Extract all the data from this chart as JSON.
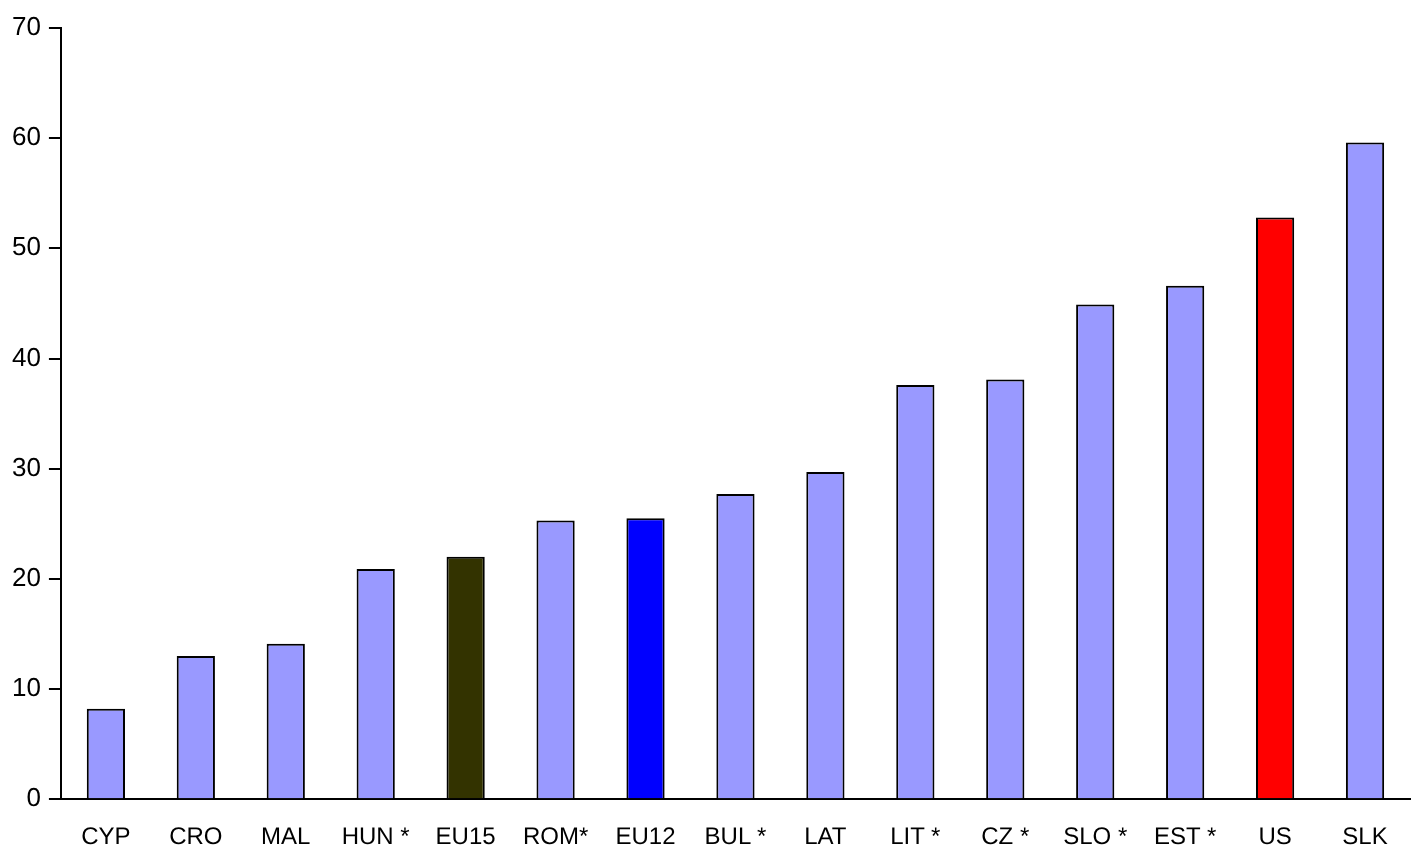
{
  "chart_data": {
    "type": "bar",
    "categories": [
      "CYP",
      "CRO",
      "MAL",
      "HUN *",
      "EU15",
      "ROM*",
      "EU12",
      "BUL *",
      "LAT",
      "LIT *",
      "CZ *",
      "SLO *",
      "EST *",
      "US",
      "SLK"
    ],
    "values": [
      8.2,
      13,
      14.1,
      20.9,
      22,
      25.3,
      25.5,
      27.7,
      29.7,
      37.6,
      38.1,
      44.9,
      46.6,
      52.8,
      59.6
    ],
    "colors": [
      "#9999ff",
      "#9999ff",
      "#9999ff",
      "#9999ff",
      "#333300",
      "#9999ff",
      "#0000ff",
      "#9999ff",
      "#9999ff",
      "#9999ff",
      "#9999ff",
      "#9999ff",
      "#9999ff",
      "#ff0000",
      "#9999ff"
    ],
    "ylim": [
      0,
      70
    ],
    "yticks": [
      0,
      10,
      20,
      30,
      40,
      50,
      60,
      70
    ],
    "grid": false,
    "legend": false
  }
}
